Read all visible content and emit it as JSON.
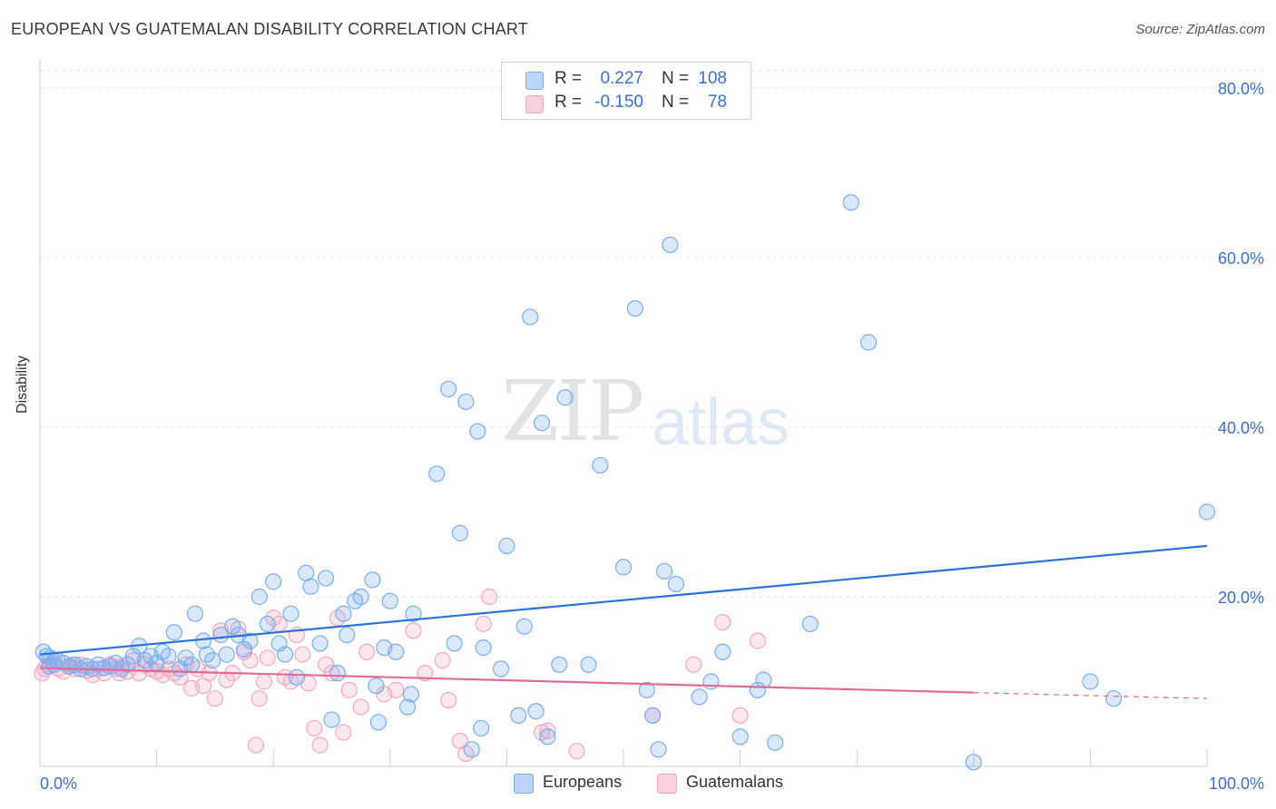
{
  "title": "EUROPEAN VS GUATEMALAN DISABILITY CORRELATION CHART",
  "source": "Source: ZipAtlas.com",
  "watermark": {
    "zip": "ZIP",
    "atlas": "atlas"
  },
  "colors": {
    "europeans": "#7aaef0",
    "europeans_line": "#2d72d9",
    "guatemalans": "#f4a8c0",
    "guatemalans_line": "#e46a96",
    "value_text": "#3b6fd0"
  },
  "legend": {
    "rows": [
      {
        "r_label": "R =",
        "r_value": "0.227",
        "n_label": "N =",
        "n_value": "108"
      },
      {
        "r_label": "R =",
        "r_value": "-0.150",
        "n_label": "N =",
        "n_value": "78"
      }
    ]
  },
  "bottom_legend": {
    "europeans": "Europeans",
    "guatemalans": "Guatemalans"
  },
  "chart_data": {
    "type": "scatter",
    "ylabel": "Disability",
    "xlim": [
      0,
      100
    ],
    "ylim": [
      0,
      80
    ],
    "x_tick_labels": [
      "0.0%",
      "100.0%"
    ],
    "y_tick_labels": [
      "20.0%",
      "40.0%",
      "60.0%",
      "80.0%"
    ],
    "y_ticks": [
      20,
      40,
      60,
      80
    ],
    "grid": "horizontal dashed",
    "legend_position": "top-center",
    "series": [
      {
        "name": "Europeans",
        "trend": {
          "x": [
            0,
            100
          ],
          "y": [
            13.2,
            26.0
          ]
        },
        "points": [
          [
            0.3,
            13.5
          ],
          [
            0.6,
            13.0
          ],
          [
            0.9,
            12.8
          ],
          [
            1.2,
            12.0
          ],
          [
            1.5,
            12.5
          ],
          [
            2.0,
            12.2
          ],
          [
            2.5,
            11.8
          ],
          [
            3.0,
            12.0
          ],
          [
            3.5,
            11.5
          ],
          [
            4.0,
            11.8
          ],
          [
            4.5,
            11.5
          ],
          [
            5.0,
            12.0
          ],
          [
            5.5,
            11.6
          ],
          [
            6.0,
            11.8
          ],
          [
            6.5,
            12.2
          ],
          [
            7.0,
            11.5
          ],
          [
            7.5,
            12.0
          ],
          [
            8.0,
            13.0
          ],
          [
            8.5,
            14.2
          ],
          [
            9.0,
            12.5
          ],
          [
            9.5,
            13.0
          ],
          [
            10.0,
            12.2
          ],
          [
            10.5,
            13.5
          ],
          [
            11.0,
            13.0
          ],
          [
            11.5,
            15.8
          ],
          [
            12.0,
            11.5
          ],
          [
            12.5,
            12.8
          ],
          [
            13.0,
            12.0
          ],
          [
            13.3,
            18.0
          ],
          [
            14.0,
            14.8
          ],
          [
            14.3,
            13.2
          ],
          [
            14.8,
            12.5
          ],
          [
            15.5,
            15.5
          ],
          [
            16.0,
            13.2
          ],
          [
            16.5,
            16.5
          ],
          [
            17.0,
            15.5
          ],
          [
            17.5,
            13.8
          ],
          [
            18.0,
            14.8
          ],
          [
            18.8,
            20.0
          ],
          [
            19.5,
            16.8
          ],
          [
            20.0,
            21.8
          ],
          [
            20.5,
            14.5
          ],
          [
            21.0,
            13.2
          ],
          [
            21.5,
            18.0
          ],
          [
            22.0,
            10.5
          ],
          [
            22.8,
            22.8
          ],
          [
            23.2,
            21.2
          ],
          [
            24.0,
            14.5
          ],
          [
            24.5,
            22.2
          ],
          [
            25.0,
            5.5
          ],
          [
            25.5,
            11.0
          ],
          [
            26.0,
            18.0
          ],
          [
            26.3,
            15.5
          ],
          [
            27.0,
            19.5
          ],
          [
            27.5,
            20.0
          ],
          [
            28.5,
            22.0
          ],
          [
            28.8,
            9.5
          ],
          [
            29.0,
            5.2
          ],
          [
            29.5,
            14.0
          ],
          [
            30.0,
            19.5
          ],
          [
            30.5,
            13.5
          ],
          [
            31.5,
            7.0
          ],
          [
            31.8,
            8.5
          ],
          [
            32.0,
            18.0
          ],
          [
            34.0,
            34.5
          ],
          [
            35.0,
            44.5
          ],
          [
            35.5,
            14.5
          ],
          [
            36.0,
            27.5
          ],
          [
            36.5,
            43.0
          ],
          [
            37.0,
            2.0
          ],
          [
            37.5,
            39.5
          ],
          [
            37.8,
            4.5
          ],
          [
            38.0,
            14.0
          ],
          [
            39.5,
            11.5
          ],
          [
            40.0,
            26.0
          ],
          [
            41.0,
            6.0
          ],
          [
            41.5,
            16.5
          ],
          [
            42.0,
            53.0
          ],
          [
            42.5,
            6.5
          ],
          [
            43.0,
            40.5
          ],
          [
            43.5,
            3.5
          ],
          [
            44.5,
            12.0
          ],
          [
            45.0,
            43.5
          ],
          [
            47.0,
            12.0
          ],
          [
            48.0,
            35.5
          ],
          [
            50.0,
            23.5
          ],
          [
            51.0,
            54.0
          ],
          [
            52.0,
            9.0
          ],
          [
            52.5,
            6.0
          ],
          [
            53.0,
            2.0
          ],
          [
            53.5,
            23.0
          ],
          [
            54.0,
            61.5
          ],
          [
            54.5,
            21.5
          ],
          [
            56.5,
            8.2
          ],
          [
            57.5,
            10.0
          ],
          [
            58.5,
            13.5
          ],
          [
            60.0,
            3.5
          ],
          [
            61.5,
            9.0
          ],
          [
            62.0,
            10.2
          ],
          [
            63.0,
            2.8
          ],
          [
            66.0,
            16.8
          ],
          [
            69.5,
            66.5
          ],
          [
            71.0,
            50.0
          ],
          [
            80.0,
            0.5
          ],
          [
            90.0,
            10.0
          ],
          [
            92.0,
            8.0
          ],
          [
            100.0,
            30.0
          ],
          [
            0.8,
            11.8
          ]
        ]
      },
      {
        "name": "Guatemalans",
        "trend": {
          "x": [
            0,
            80
          ],
          "y": [
            11.6,
            8.7
          ]
        },
        "trend_dashed": {
          "x": [
            80,
            100
          ],
          "y": [
            8.7,
            8.0
          ]
        },
        "points": [
          [
            0.4,
            11.5
          ],
          [
            0.8,
            11.8
          ],
          [
            1.2,
            12.5
          ],
          [
            1.6,
            11.5
          ],
          [
            2.0,
            11.2
          ],
          [
            2.5,
            11.8
          ],
          [
            3.0,
            11.5
          ],
          [
            3.5,
            12.0
          ],
          [
            4.0,
            11.3
          ],
          [
            4.5,
            10.8
          ],
          [
            5.0,
            11.5
          ],
          [
            5.5,
            11.0
          ],
          [
            6.0,
            12.0
          ],
          [
            6.5,
            11.5
          ],
          [
            7.0,
            11.8
          ],
          [
            7.5,
            11.2
          ],
          [
            8.0,
            12.5
          ],
          [
            8.5,
            11.0
          ],
          [
            9.0,
            12.0
          ],
          [
            9.5,
            11.5
          ],
          [
            10.0,
            11.2
          ],
          [
            10.5,
            10.8
          ],
          [
            11.0,
            11.5
          ],
          [
            11.5,
            11.0
          ],
          [
            12.0,
            10.5
          ],
          [
            12.5,
            12.0
          ],
          [
            13.0,
            9.2
          ],
          [
            13.5,
            11.5
          ],
          [
            14.0,
            9.5
          ],
          [
            14.5,
            11.0
          ],
          [
            15.0,
            8.0
          ],
          [
            15.5,
            16.0
          ],
          [
            16.0,
            10.2
          ],
          [
            16.5,
            11.0
          ],
          [
            17.0,
            16.2
          ],
          [
            17.5,
            13.5
          ],
          [
            18.0,
            12.5
          ],
          [
            18.5,
            2.5
          ],
          [
            18.8,
            8.0
          ],
          [
            19.2,
            10.0
          ],
          [
            19.5,
            12.8
          ],
          [
            20.0,
            17.5
          ],
          [
            20.5,
            16.8
          ],
          [
            21.0,
            10.5
          ],
          [
            21.5,
            10.0
          ],
          [
            22.0,
            15.5
          ],
          [
            22.5,
            13.2
          ],
          [
            23.0,
            9.8
          ],
          [
            23.5,
            4.5
          ],
          [
            24.0,
            2.5
          ],
          [
            24.5,
            12.0
          ],
          [
            25.0,
            11.0
          ],
          [
            25.5,
            17.5
          ],
          [
            26.0,
            4.0
          ],
          [
            26.5,
            9.0
          ],
          [
            27.5,
            7.0
          ],
          [
            28.0,
            13.5
          ],
          [
            29.5,
            8.5
          ],
          [
            30.5,
            9.0
          ],
          [
            32.0,
            16.0
          ],
          [
            33.0,
            11.0
          ],
          [
            34.5,
            12.5
          ],
          [
            35.0,
            7.8
          ],
          [
            36.0,
            3.0
          ],
          [
            36.5,
            1.5
          ],
          [
            38.0,
            16.8
          ],
          [
            38.5,
            20.0
          ],
          [
            43.0,
            4.0
          ],
          [
            43.5,
            4.2
          ],
          [
            46.0,
            1.8
          ],
          [
            52.5,
            6.0
          ],
          [
            56.0,
            12.0
          ],
          [
            58.5,
            17.0
          ],
          [
            60.0,
            6.0
          ],
          [
            61.5,
            14.8
          ],
          [
            0.2,
            11.0
          ],
          [
            2.8,
            12.0
          ],
          [
            6.8,
            11.0
          ]
        ]
      }
    ]
  }
}
